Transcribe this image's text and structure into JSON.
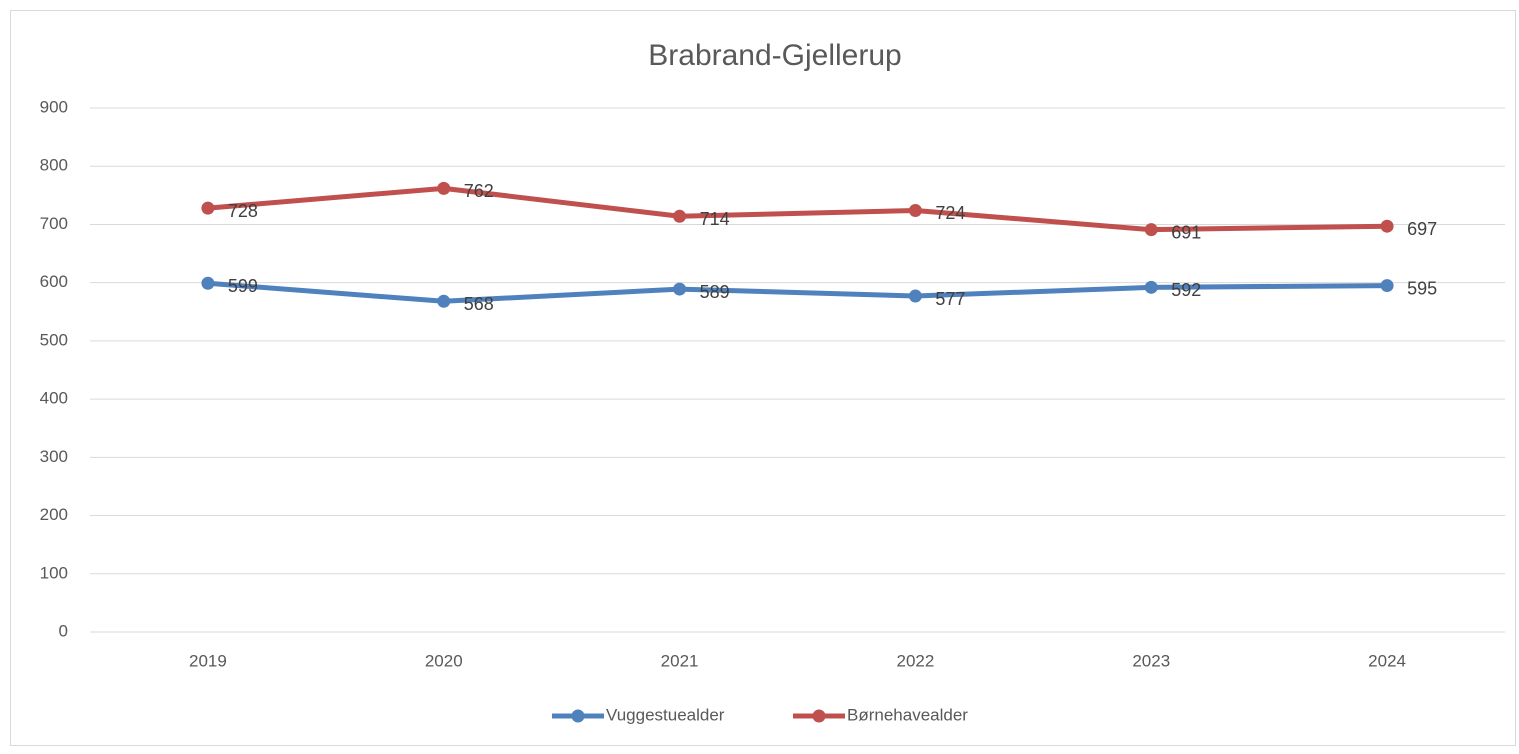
{
  "chart_data": {
    "type": "line",
    "title": "Brabrand-Gjellerup",
    "categories": [
      "2019",
      "2020",
      "2021",
      "2022",
      "2023",
      "2024"
    ],
    "series": [
      {
        "name": "Vuggestuealder",
        "color": "#4f81bd",
        "values": [
          599,
          568,
          589,
          577,
          592,
          595
        ]
      },
      {
        "name": "Børnehavealder",
        "color": "#c0504d",
        "values": [
          728,
          762,
          714,
          724,
          691,
          697
        ]
      }
    ],
    "ylim": [
      0,
      900
    ],
    "yticks": [
      0,
      100,
      200,
      300,
      400,
      500,
      600,
      700,
      800,
      900
    ],
    "grid": true,
    "legend": "bottom"
  }
}
